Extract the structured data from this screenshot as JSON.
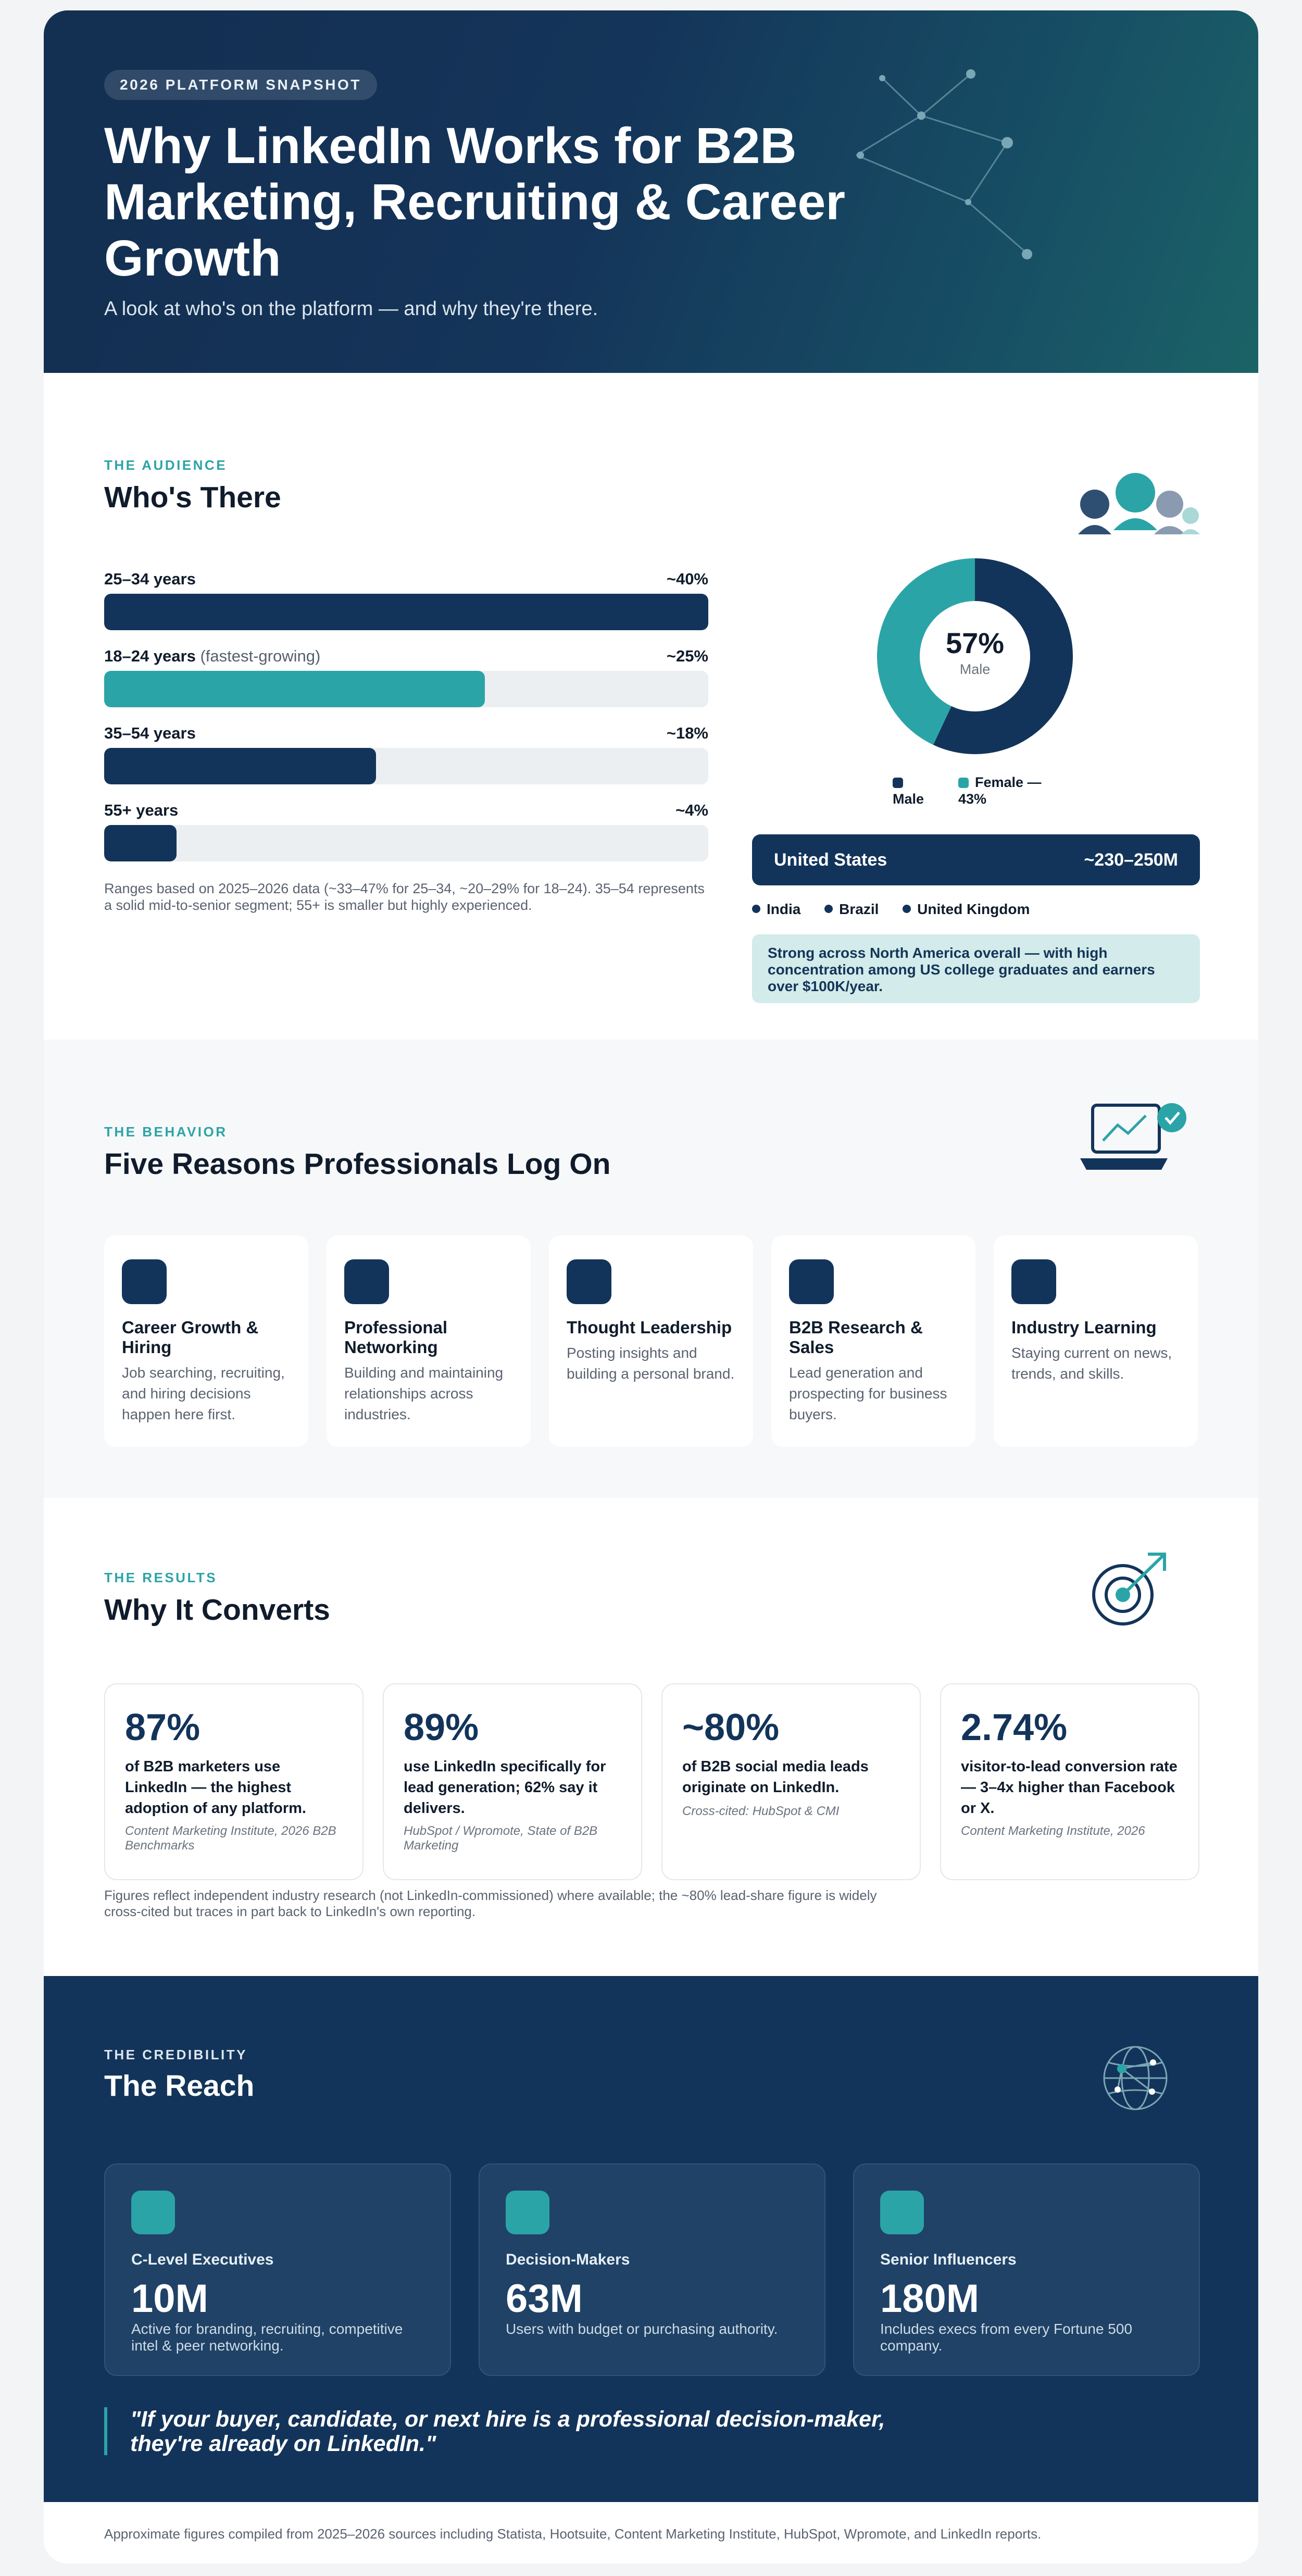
{
  "hero": {
    "badge": "2026 PLATFORM SNAPSHOT",
    "title": "Why LinkedIn Works for B2B Marketing, Recruiting & Career Growth",
    "subtitle": "A look at who's on the platform — and why they're there."
  },
  "audience": {
    "eyebrow": "THE AUDIENCE",
    "heading": "Who's There",
    "age_bars": [
      {
        "label": "25–34 years",
        "note": "",
        "value_text": "~40%",
        "fill": 1.0,
        "color": "#13345a"
      },
      {
        "label": "18–24 years",
        "note": "(fastest-growing)",
        "value_text": "~25%",
        "fill": 0.63,
        "color": "#2ba4a7"
      },
      {
        "label": "35–54 years",
        "note": "",
        "value_text": "~18%",
        "fill": 0.45,
        "color": "#13345a"
      },
      {
        "label": "55+ years",
        "note": "",
        "value_text": "~4%",
        "fill": 0.12,
        "color": "#13345a"
      }
    ],
    "footnote": "Ranges based on 2025–2026 data (~33–47% for 25–34, ~20–29% for 18–24). 35–54 represents a solid mid-to-senior segment; 55+ is smaller but highly experienced.",
    "gender": {
      "center_value": "57%",
      "center_label": "Male",
      "male_share": 57,
      "female_share": 43,
      "legend_male": "Male",
      "legend_female": "Female — 43%",
      "male_color": "#13345a",
      "female_color": "#2ba4a7"
    },
    "top_country": {
      "name": "United States",
      "value": "~230–250M"
    },
    "other_countries": [
      "India",
      "Brazil",
      "United Kingdom"
    ],
    "note": "Strong across North America overall — with high concentration among US college graduates and earners over $100K/year."
  },
  "behavior": {
    "eyebrow": "THE BEHAVIOR",
    "heading": "Five Reasons Professionals Log On",
    "reasons": [
      {
        "title": "Career Growth & Hiring",
        "desc": "Job searching, recruiting, and hiring decisions happen here first."
      },
      {
        "title": "Professional Networking",
        "desc": "Building and maintaining relationships across industries."
      },
      {
        "title": "Thought Leadership",
        "desc": "Posting insights and building a personal brand."
      },
      {
        "title": "B2B Research & Sales",
        "desc": "Lead generation and prospecting for business buyers."
      },
      {
        "title": "Industry Learning",
        "desc": "Staying current on news, trends, and skills."
      }
    ]
  },
  "results": {
    "eyebrow": "THE RESULTS",
    "heading": "Why It Converts",
    "stats": [
      {
        "number": "87%",
        "text": "of B2B marketers use LinkedIn — the highest adoption of any platform.",
        "source": "Content Marketing Institute, 2026 B2B Benchmarks"
      },
      {
        "number": "89%",
        "text": "use LinkedIn specifically for lead generation; 62% say it delivers.",
        "source": "HubSpot / Wpromote, State of B2B Marketing"
      },
      {
        "number": "~80%",
        "text": "of B2B social media leads originate on LinkedIn.",
        "source": "Cross-cited: HubSpot & CMI"
      },
      {
        "number": "2.74%",
        "text": "visitor-to-lead conversion rate — 3–4x higher than Facebook or X.",
        "source": "Content Marketing Institute, 2026"
      }
    ],
    "footnote": "Figures reflect independent industry research (not LinkedIn-commissioned) where available; the ~80% lead-share figure is widely cross-cited but traces in part back to LinkedIn's own reporting."
  },
  "reach": {
    "eyebrow": "THE CREDIBILITY",
    "heading": "The Reach",
    "cards": [
      {
        "label": "C-Level Executives",
        "value": "10M",
        "desc": "Active for branding, recruiting, competitive intel & peer networking."
      },
      {
        "label": "Decision-Makers",
        "value": "63M",
        "desc": "Users with budget or purchasing authority."
      },
      {
        "label": "Senior Influencers",
        "value": "180M",
        "desc": "Includes execs from every Fortune 500 company."
      }
    ],
    "quote": "\"If your buyer, candidate, or next hire is a professional decision-maker, they're already on LinkedIn.\""
  },
  "footer": {
    "text": "Approximate figures compiled from 2025–2026 sources including Statista, Hootsuite, Content Marketing Institute, HubSpot, Wpromote, and LinkedIn reports."
  },
  "colors": {
    "navy": "#13345a",
    "teal": "#2ba4a7",
    "light_teal": "#d3ebea"
  },
  "icons": [
    "network-icon",
    "people-icon",
    "laptop-chart-icon",
    "target-icon",
    "globe-icon"
  ]
}
